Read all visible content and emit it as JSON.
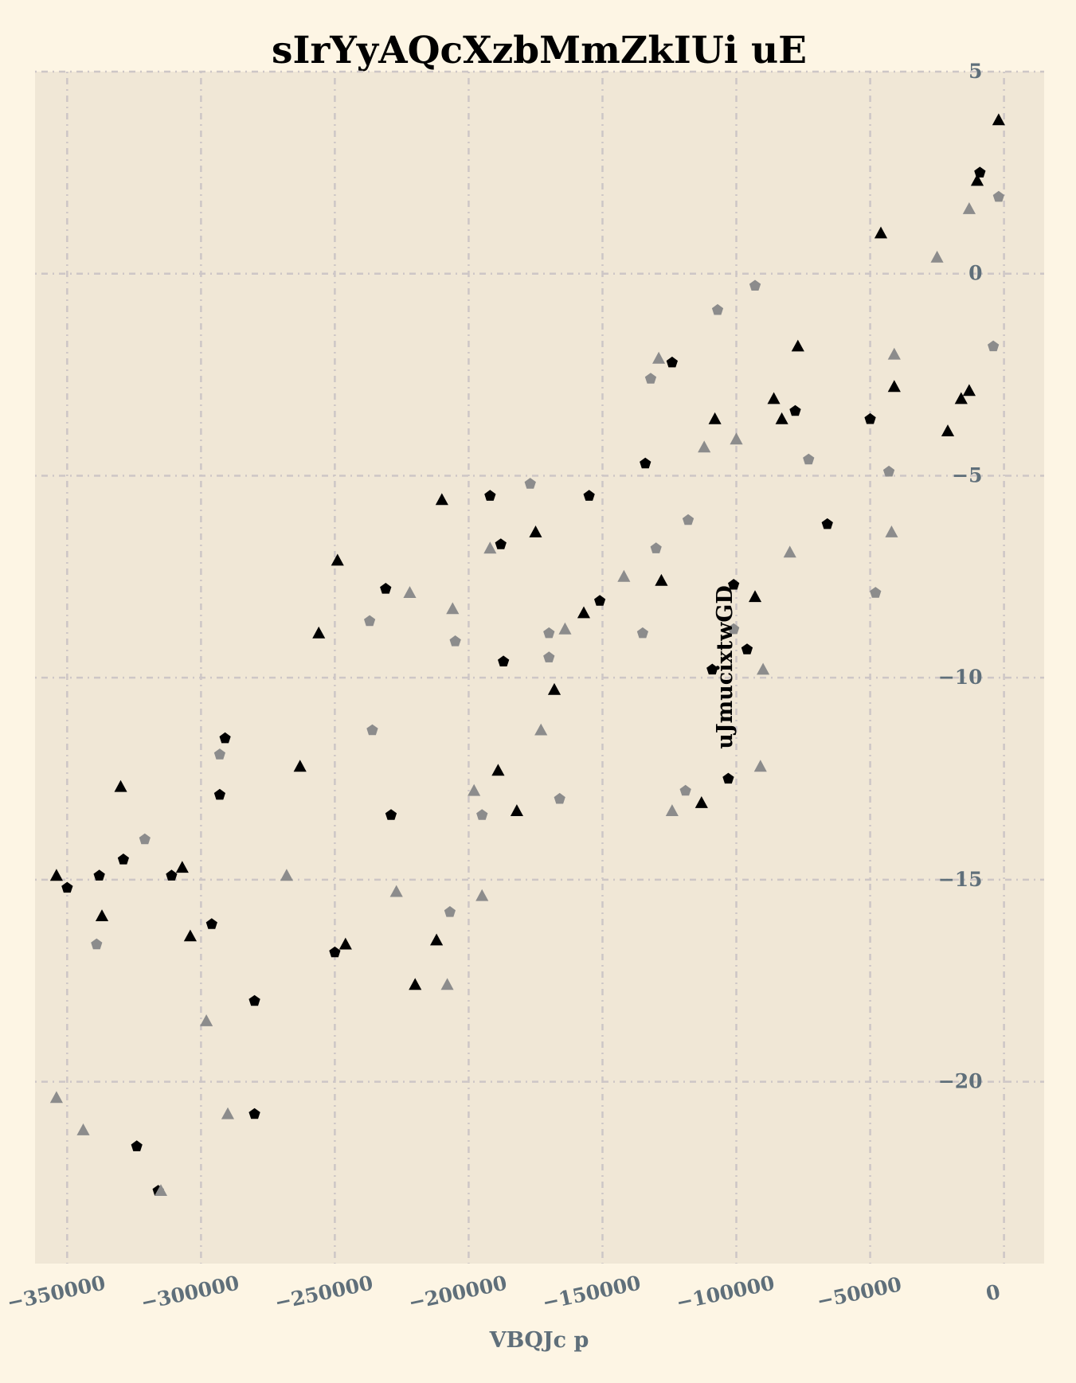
{
  "chart_data": {
    "type": "scatter",
    "title": "sIrYyAQcXzbMmZkIUi uE",
    "xlabel": "VBQJc p",
    "ylabel": "uJmucixtwGD",
    "xlim": [
      -362000,
      15000
    ],
    "ylim": [
      -24.5,
      5
    ],
    "xticks": [
      -350000,
      -300000,
      -250000,
      -200000,
      -150000,
      -100000,
      -50000,
      0
    ],
    "xtick_labels": [
      "−350000",
      "−300000",
      "−250000",
      "−200000",
      "−150000",
      "−100000",
      "−50000",
      "0"
    ],
    "yticks": [
      5,
      0,
      -5,
      -10,
      -15,
      -20
    ],
    "ytick_labels": [
      "5",
      "0",
      "−5",
      "−10",
      "−15",
      "−20"
    ],
    "grid": true,
    "colors": {
      "background": "#fdf5e4",
      "plot_area": "#f0e7d6",
      "grid": "#cdc6c6",
      "tick_text": "#5f6f7a",
      "series_black": "#000000",
      "series_gray": "#8c8c8c"
    },
    "series": [
      {
        "marker": "triangle",
        "color": "#000000",
        "points": [
          [
            -354000,
            -14.9
          ],
          [
            -337000,
            -15.9
          ],
          [
            -330000,
            -12.7
          ],
          [
            -307000,
            -14.7
          ],
          [
            -304000,
            -16.4
          ],
          [
            -263000,
            -12.2
          ],
          [
            -256000,
            -8.9
          ],
          [
            -249000,
            -7.1
          ],
          [
            -246000,
            -16.6
          ],
          [
            -220000,
            -17.6
          ],
          [
            -212000,
            -16.5
          ],
          [
            -210000,
            -5.6
          ],
          [
            -189000,
            -12.3
          ],
          [
            -182000,
            -13.3
          ],
          [
            -175000,
            -6.4
          ],
          [
            -168000,
            -10.3
          ],
          [
            -157000,
            -8.4
          ],
          [
            -128000,
            -7.6
          ],
          [
            -113000,
            -13.1
          ],
          [
            -108000,
            -3.6
          ],
          [
            -93000,
            -8.0
          ],
          [
            -86000,
            -3.1
          ],
          [
            -83000,
            -3.6
          ],
          [
            -77000,
            -1.8
          ],
          [
            -46000,
            1.0
          ],
          [
            -41000,
            -2.8
          ],
          [
            -21000,
            -3.9
          ],
          [
            -16000,
            -3.1
          ],
          [
            -13000,
            -2.9
          ],
          [
            -10000,
            2.3
          ],
          [
            -2000,
            3.8
          ]
        ]
      },
      {
        "marker": "pentagon",
        "color": "#000000",
        "points": [
          [
            -350000,
            -15.2
          ],
          [
            -338000,
            -14.9
          ],
          [
            -329000,
            -14.5
          ],
          [
            -324000,
            -21.6
          ],
          [
            -316000,
            -22.7
          ],
          [
            -311000,
            -14.9
          ],
          [
            -296000,
            -16.1
          ],
          [
            -293000,
            -12.9
          ],
          [
            -291000,
            -11.5
          ],
          [
            -280000,
            -18.0
          ],
          [
            -280000,
            -20.8
          ],
          [
            -250000,
            -16.8
          ],
          [
            -231000,
            -7.8
          ],
          [
            -229000,
            -13.4
          ],
          [
            -192000,
            -5.5
          ],
          [
            -188000,
            -6.7
          ],
          [
            -187000,
            -9.6
          ],
          [
            -155000,
            -5.5
          ],
          [
            -151000,
            -8.1
          ],
          [
            -134000,
            -4.7
          ],
          [
            -124000,
            -2.2
          ],
          [
            -109000,
            -9.8
          ],
          [
            -103000,
            -12.5
          ],
          [
            -101000,
            -7.7
          ],
          [
            -96000,
            -9.3
          ],
          [
            -78000,
            -3.4
          ],
          [
            -66000,
            -6.2
          ],
          [
            -50000,
            -3.6
          ],
          [
            -9000,
            2.5
          ]
        ]
      },
      {
        "marker": "triangle",
        "color": "#8c8c8c",
        "points": [
          [
            -354000,
            -20.4
          ],
          [
            -344000,
            -21.2
          ],
          [
            -315000,
            -22.7
          ],
          [
            -298000,
            -18.5
          ],
          [
            -290000,
            -20.8
          ],
          [
            -268000,
            -14.9
          ],
          [
            -227000,
            -15.3
          ],
          [
            -222000,
            -7.9
          ],
          [
            -208000,
            -17.6
          ],
          [
            -206000,
            -8.3
          ],
          [
            -198000,
            -12.8
          ],
          [
            -195000,
            -15.4
          ],
          [
            -192000,
            -6.8
          ],
          [
            -173000,
            -11.3
          ],
          [
            -164000,
            -8.8
          ],
          [
            -142000,
            -7.5
          ],
          [
            -129000,
            -2.1
          ],
          [
            -124000,
            -13.3
          ],
          [
            -112000,
            -4.3
          ],
          [
            -100000,
            -4.1
          ],
          [
            -90000,
            -9.8
          ],
          [
            -91000,
            -12.2
          ],
          [
            -80000,
            -6.9
          ],
          [
            -41000,
            -2.0
          ],
          [
            -42000,
            -6.4
          ],
          [
            -25000,
            0.4
          ],
          [
            -13000,
            1.6
          ]
        ]
      },
      {
        "marker": "pentagon",
        "color": "#8c8c8c",
        "points": [
          [
            -339000,
            -16.6
          ],
          [
            -321000,
            -14.0
          ],
          [
            -293000,
            -11.9
          ],
          [
            -237000,
            -8.6
          ],
          [
            -236000,
            -11.3
          ],
          [
            -207000,
            -15.8
          ],
          [
            -205000,
            -9.1
          ],
          [
            -195000,
            -13.4
          ],
          [
            -177000,
            -5.2
          ],
          [
            -170000,
            -8.9
          ],
          [
            -170000,
            -9.5
          ],
          [
            -166000,
            -13.0
          ],
          [
            -135000,
            -8.9
          ],
          [
            -132000,
            -2.6
          ],
          [
            -130000,
            -6.8
          ],
          [
            -118000,
            -6.1
          ],
          [
            -119000,
            -12.8
          ],
          [
            -107000,
            -0.9
          ],
          [
            -101000,
            -8.8
          ],
          [
            -93000,
            -0.3
          ],
          [
            -73000,
            -4.6
          ],
          [
            -48000,
            -7.9
          ],
          [
            -43000,
            -4.9
          ],
          [
            -4000,
            -1.8
          ],
          [
            -2000,
            1.9
          ]
        ]
      }
    ]
  }
}
